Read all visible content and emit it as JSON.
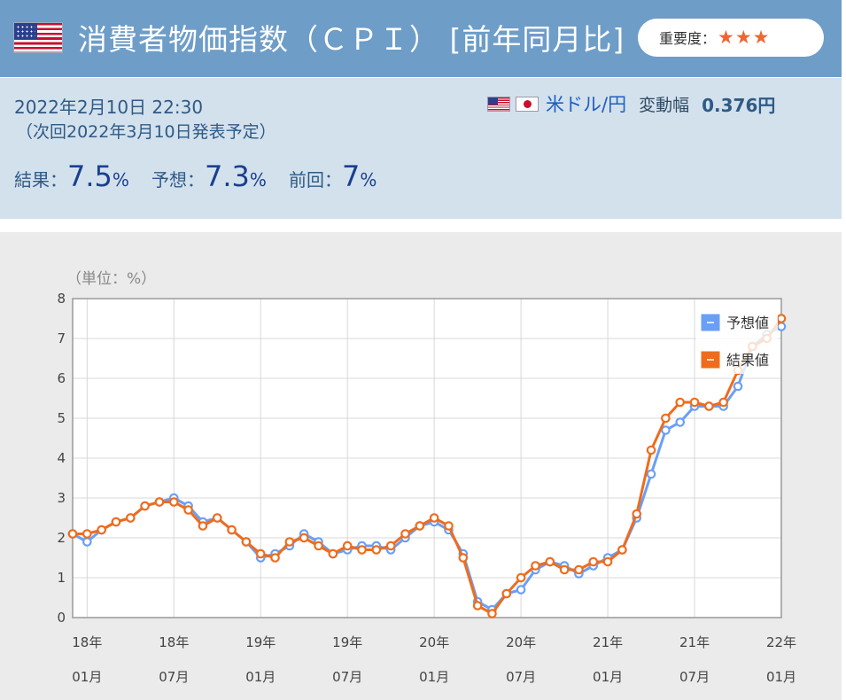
{
  "header": {
    "title": "消費者物価指数（ＣＰＩ） [前年同月比]",
    "importance_label": "重要度：",
    "importance_stars": "★★★"
  },
  "info": {
    "datetime": "2022年2月10日 22:30",
    "next_release": "（次回2022年3月10日発表予定）",
    "pair_link": "米ドル/円",
    "range_label": "変動幅",
    "range_value": "0.376円",
    "result_label": "結果：",
    "result_value": "7.5",
    "forecast_label": "予想：",
    "forecast_value": "7.3",
    "previous_label": "前回：",
    "previous_value": "7",
    "percent": "%"
  },
  "colors": {
    "forecast": "#6a9ff5",
    "result": "#ef6c1d",
    "header_bg": "#6e9dc8",
    "info_bg": "#d3e1ed"
  },
  "chart_data": {
    "type": "line",
    "unit_label": "（単位：%）",
    "ylim": [
      0,
      8
    ],
    "yticks": [
      0,
      1,
      2,
      3,
      4,
      5,
      6,
      7,
      8
    ],
    "xlim": [
      0,
      49
    ],
    "x_ticks": [
      {
        "index": 1,
        "year": "18年",
        "month": "01月"
      },
      {
        "index": 7,
        "year": "18年",
        "month": "07月"
      },
      {
        "index": 13,
        "year": "19年",
        "month": "01月"
      },
      {
        "index": 19,
        "year": "19年",
        "month": "07月"
      },
      {
        "index": 25,
        "year": "20年",
        "month": "01月"
      },
      {
        "index": 31,
        "year": "20年",
        "month": "07月"
      },
      {
        "index": 37,
        "year": "21年",
        "month": "01月"
      },
      {
        "index": 43,
        "year": "21年",
        "month": "07月"
      },
      {
        "index": 49,
        "year": "22年",
        "month": "01月"
      }
    ],
    "grid": true,
    "legend_position": "top-right",
    "series": [
      {
        "name": "予想値",
        "color": "#6a9ff5",
        "values": [
          2.1,
          1.9,
          2.2,
          2.4,
          2.5,
          2.8,
          2.9,
          3.0,
          2.8,
          2.4,
          2.5,
          2.2,
          1.9,
          1.5,
          1.6,
          1.8,
          2.1,
          1.9,
          1.6,
          1.7,
          1.8,
          1.8,
          1.7,
          2.0,
          2.3,
          2.4,
          2.2,
          1.6,
          0.4,
          0.2,
          0.6,
          0.7,
          1.2,
          1.4,
          1.3,
          1.1,
          1.3,
          1.5,
          1.7,
          2.5,
          3.6,
          4.7,
          4.9,
          5.3,
          5.3,
          5.3,
          5.8,
          6.8,
          7.1,
          7.3
        ]
      },
      {
        "name": "結果値",
        "color": "#ef6c1d",
        "values": [
          2.1,
          2.1,
          2.2,
          2.4,
          2.5,
          2.8,
          2.9,
          2.9,
          2.7,
          2.3,
          2.5,
          2.2,
          1.9,
          1.6,
          1.5,
          1.9,
          2.0,
          1.8,
          1.6,
          1.8,
          1.7,
          1.7,
          1.8,
          2.1,
          2.3,
          2.5,
          2.3,
          1.5,
          0.3,
          0.1,
          0.6,
          1.0,
          1.3,
          1.4,
          1.2,
          1.2,
          1.4,
          1.4,
          1.7,
          2.6,
          4.2,
          5.0,
          5.4,
          5.4,
          5.3,
          5.4,
          6.2,
          6.8,
          7.0,
          7.5
        ]
      }
    ]
  }
}
